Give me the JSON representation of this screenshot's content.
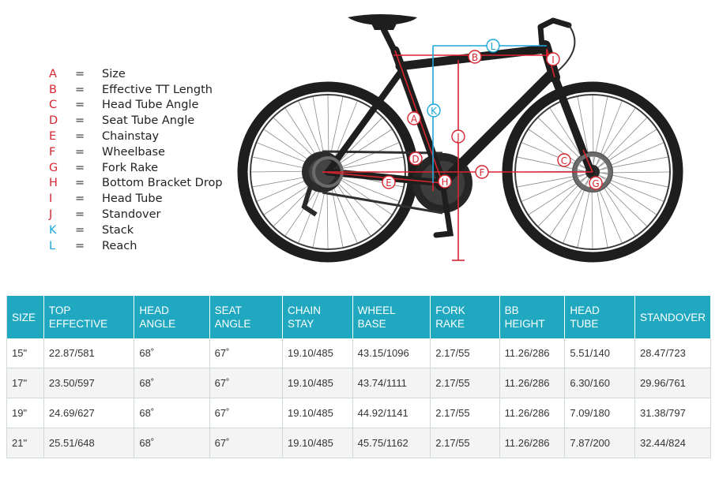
{
  "legend": [
    {
      "code": "A",
      "label": "Size",
      "color": "#d6252f"
    },
    {
      "code": "B",
      "label": "Effective TT Length",
      "color": "#d6252f"
    },
    {
      "code": "C",
      "label": "Head Tube Angle",
      "color": "#d6252f"
    },
    {
      "code": "D",
      "label": "Seat Tube Angle",
      "color": "#d6252f"
    },
    {
      "code": "E",
      "label": "Chainstay",
      "color": "#d6252f"
    },
    {
      "code": "F",
      "label": "Wheelbase",
      "color": "#d6252f"
    },
    {
      "code": "G",
      "label": "Fork Rake",
      "color": "#d6252f"
    },
    {
      "code": "H",
      "label": "Bottom Bracket Drop",
      "color": "#d6252f"
    },
    {
      "code": "I",
      "label": "Head Tube",
      "color": "#d6252f"
    },
    {
      "code": "J",
      "label": "Standover",
      "color": "#d6252f"
    },
    {
      "code": "K",
      "label": "Stack",
      "color": "#1aa7dc"
    },
    {
      "code": "L",
      "label": "Reach",
      "color": "#1aa7dc"
    }
  ],
  "equals": "=",
  "diagram_labels": {
    "A": "A",
    "B": "B",
    "C": "C",
    "D": "D",
    "E": "E",
    "F": "F",
    "G": "G",
    "H": "H",
    "I": "I",
    "J": "J",
    "K": "K",
    "L": "L"
  },
  "table": {
    "headers": [
      [
        "SIZE"
      ],
      [
        "TOP",
        "EFFECTIVE"
      ],
      [
        "HEAD",
        "ANGLE"
      ],
      [
        "SEAT",
        "ANGLE"
      ],
      [
        "CHAIN",
        "STAY"
      ],
      [
        "WHEEL",
        "BASE"
      ],
      [
        "FORK",
        "RAKE"
      ],
      [
        "BB",
        "HEIGHT"
      ],
      [
        "HEAD",
        "TUBE"
      ],
      [
        "STANDOVER"
      ]
    ],
    "rows": [
      [
        "15\"",
        "22.87/581",
        "68˚",
        "67˚",
        "19.10/485",
        "43.15/1096",
        "2.17/55",
        "11.26/286",
        "5.51/140",
        "28.47/723"
      ],
      [
        "17\"",
        "23.50/597",
        "68˚",
        "67˚",
        "19.10/485",
        "43.74/1111",
        "2.17/55",
        "11.26/286",
        "6.30/160",
        "29.96/761"
      ],
      [
        "19\"",
        "24.69/627",
        "68˚",
        "67˚",
        "19.10/485",
        "44.92/1141",
        "2.17/55",
        "11.26/286",
        "7.09/180",
        "31.38/797"
      ],
      [
        "21\"",
        "25.51/648",
        "68˚",
        "67˚",
        "19.10/485",
        "45.75/1162",
        "2.17/55",
        "11.26/286",
        "7.87/200",
        "32.44/824"
      ]
    ]
  },
  "colors": {
    "dimension_red": "#d6252f",
    "dimension_blue": "#1aa7dc",
    "frame": "#1e1e1e",
    "table_header": "#1fa8c0"
  }
}
